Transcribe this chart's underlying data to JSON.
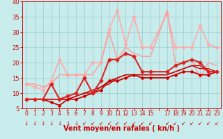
{
  "bg_color": "#c8ecec",
  "grid_color": "#a0d0d0",
  "xlabel": "Vent moyen/en rafales ( kn/h )",
  "xlabel_color": "#cc0000",
  "tick_color": "#cc0000",
  "ylim": [
    5,
    40
  ],
  "xlim": [
    -0.5,
    23.5
  ],
  "yticks": [
    5,
    10,
    15,
    20,
    25,
    30,
    35,
    40
  ],
  "xtick_labels": [
    "0",
    "1",
    "2",
    "3",
    "4",
    "5",
    "6",
    "7",
    "8",
    "9",
    "10",
    "11",
    "12",
    "13",
    "14",
    "15",
    "",
    "17",
    "18",
    "19",
    "20",
    "21",
    "22",
    "23"
  ],
  "xtick_pos": [
    0,
    1,
    2,
    3,
    4,
    5,
    6,
    7,
    8,
    9,
    10,
    11,
    12,
    13,
    14,
    15,
    16,
    17,
    18,
    19,
    20,
    21,
    22,
    23
  ],
  "series": [
    {
      "x": [
        0,
        1,
        2,
        3,
        4,
        5,
        6,
        7,
        8,
        9,
        10,
        11,
        12,
        13,
        14,
        15,
        17,
        18,
        19,
        20,
        21,
        22,
        23
      ],
      "y": [
        8,
        8,
        8,
        7,
        6,
        8,
        8,
        9,
        10,
        11,
        14,
        14,
        15,
        16,
        15,
        15,
        15,
        16,
        17,
        17,
        16,
        16,
        17
      ],
      "color": "#cc0000",
      "lw": 1.3,
      "marker": "D",
      "ms": 2.0,
      "zorder": 6
    },
    {
      "x": [
        0,
        1,
        2,
        3,
        4,
        5,
        6,
        7,
        8,
        9,
        10,
        11,
        12,
        13,
        14,
        15,
        17,
        18,
        19,
        20,
        21,
        22,
        23
      ],
      "y": [
        8,
        8,
        8,
        8,
        8,
        8,
        9,
        10,
        11,
        12,
        14,
        15,
        16,
        16,
        16,
        16,
        16,
        17,
        18,
        19,
        18,
        18,
        17
      ],
      "color": "#cc0000",
      "lw": 1.0,
      "marker": null,
      "ms": 0,
      "zorder": 5
    },
    {
      "x": [
        0,
        1,
        2,
        3,
        4,
        5,
        6,
        7,
        8,
        9,
        10,
        11,
        12,
        13,
        14,
        15,
        17,
        18,
        19,
        20,
        21,
        22,
        23
      ],
      "y": [
        8,
        8,
        8,
        8,
        8,
        8,
        9,
        10,
        10,
        12,
        13,
        15,
        16,
        16,
        16,
        16,
        16,
        17,
        18,
        19,
        19,
        17,
        17
      ],
      "color": "#cc0000",
      "lw": 1.0,
      "marker": null,
      "ms": 0,
      "zorder": 5
    },
    {
      "x": [
        0,
        1,
        2,
        3,
        4,
        5,
        6,
        7,
        8,
        9,
        10,
        11,
        12,
        13,
        14,
        15,
        17,
        18,
        19,
        20,
        21,
        22,
        23
      ],
      "y": [
        8,
        8,
        8,
        13,
        8,
        9,
        10,
        15,
        10,
        14,
        21,
        21,
        23,
        22,
        17,
        17,
        17,
        19,
        20,
        21,
        20,
        17,
        17
      ],
      "color": "#dd2222",
      "lw": 1.5,
      "marker": "D",
      "ms": 2.5,
      "zorder": 6
    },
    {
      "x": [
        0,
        1,
        2,
        3,
        4,
        5,
        6,
        7,
        8,
        9,
        10,
        11,
        12,
        13,
        14,
        15,
        17,
        18,
        19,
        20,
        21,
        22,
        23
      ],
      "y": [
        13,
        13,
        12,
        13,
        16,
        16,
        16,
        16,
        16,
        20,
        30,
        21,
        25,
        23,
        22,
        22,
        37,
        20,
        20,
        21,
        15,
        20,
        19
      ],
      "color": "#ff9999",
      "lw": 1.0,
      "marker": null,
      "ms": 0,
      "zorder": 3
    },
    {
      "x": [
        0,
        1,
        2,
        3,
        4,
        5,
        6,
        7,
        8,
        9,
        10,
        11,
        12,
        13,
        14,
        15,
        17,
        18,
        19,
        20,
        21,
        22,
        23
      ],
      "y": [
        13,
        12,
        11,
        14,
        21,
        16,
        16,
        16,
        20,
        20,
        31,
        37,
        26,
        35,
        25,
        25,
        36,
        25,
        25,
        25,
        32,
        26,
        25
      ],
      "color": "#ffaaaa",
      "lw": 1.2,
      "marker": "*",
      "ms": 3.5,
      "zorder": 2
    }
  ],
  "arrow_straight": [
    0,
    1,
    2,
    3,
    4,
    5,
    6
  ],
  "arrow_diagonal": [
    7,
    8,
    9,
    10,
    11,
    12,
    13,
    14,
    15,
    17,
    18,
    19,
    20,
    21,
    22,
    23
  ]
}
